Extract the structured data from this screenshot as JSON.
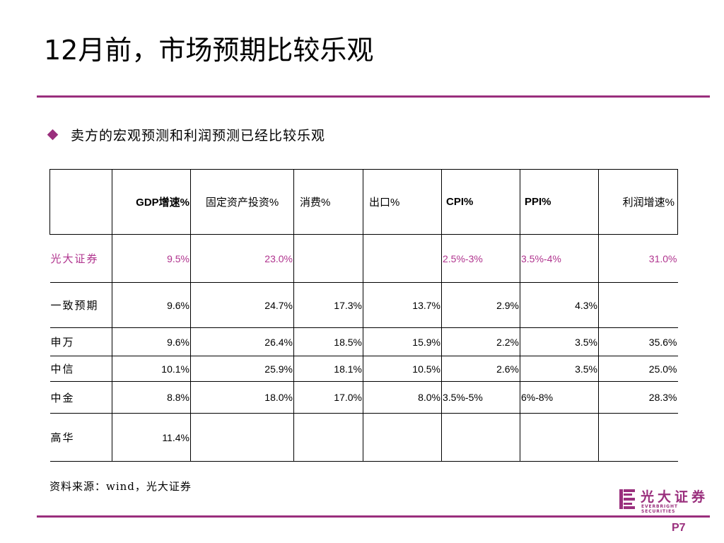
{
  "title": "12月前，市场预期比较乐观",
  "bullet": "卖方的宏观预测和利润预测已经比较乐观",
  "colors": {
    "accent": "#9a2f7d",
    "highlight": "#b0338e"
  },
  "table": {
    "headers": [
      "",
      "GDP增速%",
      "固定资产投资%",
      "消费%",
      "出口%",
      "CPI%",
      "PPI%",
      "利润增速%"
    ],
    "rows": [
      {
        "name": "光大证券",
        "cells": [
          "9.5%",
          "23.0%",
          "",
          "",
          "2.5%-3%",
          "3.5%-4%",
          "31.0%"
        ]
      },
      {
        "name": "一致预期",
        "cells": [
          "9.6%",
          "24.7%",
          "17.3%",
          "13.7%",
          "2.9%",
          "4.3%",
          ""
        ]
      },
      {
        "name": "申万",
        "cells": [
          "9.6%",
          "26.4%",
          "18.5%",
          "15.9%",
          "2.2%",
          "3.5%",
          "35.6%"
        ]
      },
      {
        "name": "中信",
        "cells": [
          "10.1%",
          "25.9%",
          "18.1%",
          "10.5%",
          "2.6%",
          "3.5%",
          "25.0%"
        ]
      },
      {
        "name": "中金",
        "cells": [
          "8.8%",
          "18.0%",
          "17.0%",
          "8.0%",
          "3.5%-5%",
          "6%-8%",
          "28.3%"
        ]
      },
      {
        "name": "高华",
        "cells": [
          "11.4%",
          "",
          "",
          "",
          "",
          "",
          ""
        ]
      }
    ]
  },
  "source": "资料来源：wind，光大证券",
  "logo": {
    "cn": "光大证券",
    "en": "EVERBRIGHT SECURITIES",
    "icon": "everbright-logo-icon"
  },
  "page": "P7"
}
